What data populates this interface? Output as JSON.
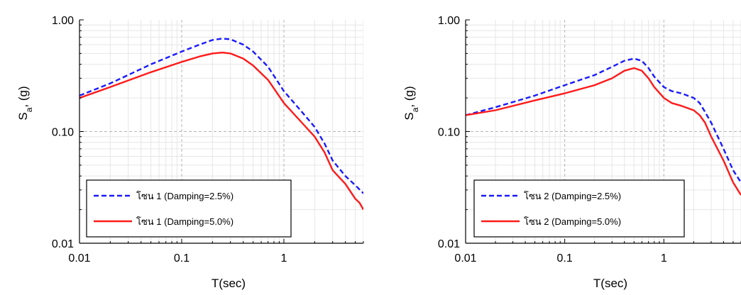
{
  "chart_data": [
    {
      "type": "line",
      "xlabel": "T(sec)",
      "ylabel_main": "S",
      "ylabel_sub": "a",
      "ylabel_rest": ", (g)",
      "xscale": "log",
      "yscale": "log",
      "xlim": [
        0.01,
        6
      ],
      "ylim": [
        0.01,
        1.0
      ],
      "xticks": [
        0.01,
        0.1,
        1
      ],
      "xtick_labels": [
        "0.01",
        "0.1",
        "1"
      ],
      "yticks": [
        0.01,
        0.1,
        1.0
      ],
      "ytick_labels": [
        "0.01",
        "0.10",
        "1.00"
      ],
      "grid": true,
      "legend_position": "bottom-left",
      "series": [
        {
          "name": "โซน 1 (Damping=2.5%)",
          "color": "#1a1aff",
          "dash": "dashed",
          "x": [
            0.01,
            0.02,
            0.05,
            0.1,
            0.15,
            0.2,
            0.25,
            0.3,
            0.4,
            0.5,
            0.7,
            1.0,
            1.5,
            2.0,
            2.5,
            3.0,
            4.0,
            5.0,
            6.0
          ],
          "y": [
            0.21,
            0.27,
            0.4,
            0.52,
            0.6,
            0.66,
            0.68,
            0.67,
            0.6,
            0.52,
            0.38,
            0.23,
            0.15,
            0.11,
            0.078,
            0.055,
            0.04,
            0.033,
            0.028
          ]
        },
        {
          "name": "โซน 1 (Damping=5.0%)",
          "color": "#ff1a1a",
          "dash": "solid",
          "x": [
            0.01,
            0.02,
            0.05,
            0.1,
            0.15,
            0.2,
            0.25,
            0.3,
            0.4,
            0.5,
            0.7,
            1.0,
            1.5,
            2.0,
            2.5,
            3.0,
            4.0,
            5.0,
            5.5,
            6.0
          ],
          "y": [
            0.2,
            0.25,
            0.34,
            0.42,
            0.47,
            0.5,
            0.51,
            0.5,
            0.45,
            0.39,
            0.29,
            0.18,
            0.12,
            0.09,
            0.065,
            0.045,
            0.034,
            0.025,
            0.023,
            0.02
          ]
        }
      ]
    },
    {
      "type": "line",
      "xlabel": "T(sec)",
      "ylabel_main": "S",
      "ylabel_sub": "a",
      "ylabel_rest": ", (g)",
      "xscale": "log",
      "yscale": "log",
      "xlim": [
        0.01,
        6
      ],
      "ylim": [
        0.01,
        1.0
      ],
      "xticks": [
        0.01,
        0.1,
        1
      ],
      "xtick_labels": [
        "0.01",
        "0.1",
        "1"
      ],
      "yticks": [
        0.01,
        0.1,
        1.0
      ],
      "ytick_labels": [
        "0.01",
        "0.10",
        "1.00"
      ],
      "grid": true,
      "legend_position": "bottom-left",
      "series": [
        {
          "name": "โซน 2 (Damping=2.5%)",
          "color": "#1a1aff",
          "dash": "dashed",
          "x": [
            0.01,
            0.02,
            0.05,
            0.1,
            0.2,
            0.3,
            0.4,
            0.5,
            0.6,
            0.7,
            0.8,
            1.0,
            1.2,
            1.5,
            2.0,
            2.3,
            2.6,
            3.0,
            4.0,
            5.0,
            6.0
          ],
          "y": [
            0.14,
            0.165,
            0.21,
            0.26,
            0.32,
            0.38,
            0.43,
            0.45,
            0.43,
            0.37,
            0.31,
            0.25,
            0.23,
            0.22,
            0.2,
            0.18,
            0.15,
            0.12,
            0.07,
            0.045,
            0.035
          ]
        },
        {
          "name": "โซน 2 (Damping=5.0%)",
          "color": "#ff1a1a",
          "dash": "solid",
          "x": [
            0.01,
            0.02,
            0.05,
            0.1,
            0.2,
            0.3,
            0.4,
            0.5,
            0.6,
            0.7,
            0.8,
            1.0,
            1.2,
            1.5,
            2.0,
            2.3,
            2.6,
            3.0,
            4.0,
            5.0,
            6.0
          ],
          "y": [
            0.14,
            0.155,
            0.19,
            0.22,
            0.26,
            0.3,
            0.35,
            0.37,
            0.35,
            0.3,
            0.25,
            0.2,
            0.18,
            0.17,
            0.155,
            0.14,
            0.12,
            0.09,
            0.055,
            0.035,
            0.027
          ]
        }
      ]
    }
  ]
}
